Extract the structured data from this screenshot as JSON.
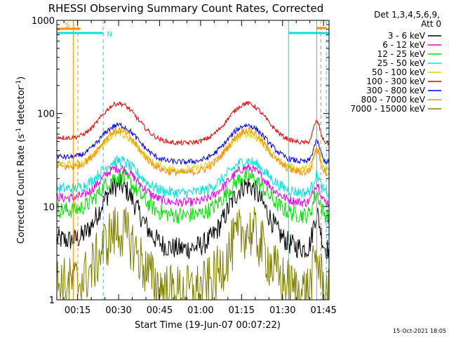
{
  "chart_data": {
    "type": "line",
    "title": "RHESSI Observing Summary Count Rates, Corrected",
    "xlabel": "Start Time (19-Jun-07 00:07:22)",
    "ylabel_main": "Corrected Count Rate (s",
    "ylabel_sup1": "-1",
    "ylabel_mid": " detector",
    "ylabel_sup2": "-1",
    "ylabel_end": ")",
    "yscale": "log",
    "ylim": [
      1,
      1000
    ],
    "xlim_min": [
      7.4,
      107
    ],
    "y_ticks": [
      {
        "v": 1,
        "label": "1"
      },
      {
        "v": 10,
        "label": "10"
      },
      {
        "v": 100,
        "label": "100"
      },
      {
        "v": 1000,
        "label": "1000"
      }
    ],
    "x_ticks": [
      {
        "m": 15,
        "label": "00:15"
      },
      {
        "m": 30,
        "label": "00:30"
      },
      {
        "m": 45,
        "label": "00:45"
      },
      {
        "m": 60,
        "label": "01:00"
      },
      {
        "m": 75,
        "label": "01:15"
      },
      {
        "m": 90,
        "label": "01:30"
      },
      {
        "m": 105,
        "label": "01:45"
      }
    ],
    "legend_header": [
      "Det 1,3,4,5,6,9,",
      "Att 0"
    ],
    "series": [
      {
        "name": "3 - 6 keV",
        "color": "#000000",
        "min": 3.5,
        "max": 17,
        "noise": 0.12
      },
      {
        "name": "6 - 12 keV",
        "color": "#e000e0",
        "min": 11,
        "max": 26,
        "noise": 0.05
      },
      {
        "name": "12 - 25 keV",
        "color": "#00e000",
        "min": 8,
        "max": 21,
        "noise": 0.09
      },
      {
        "name": "25 - 50 keV",
        "color": "#00e0e0",
        "min": 14,
        "max": 31,
        "noise": 0.06
      },
      {
        "name": "50 - 100 keV",
        "color": "#e0d000",
        "min": 25,
        "max": 60,
        "noise": 0.04
      },
      {
        "name": "100 - 300 keV",
        "color": "#e00000",
        "min": 48,
        "max": 128,
        "noise": 0.025
      },
      {
        "name": "300 - 800 keV",
        "color": "#0000e0",
        "min": 30,
        "max": 75,
        "noise": 0.03
      },
      {
        "name": "800 - 7000 keV",
        "color": "#ff8c00",
        "min": 23,
        "max": 66,
        "noise": 0.04
      },
      {
        "name": "7000 - 15000 keV",
        "color": "#808000",
        "min": 1.2,
        "max": 5.5,
        "noise": 0.3
      }
    ],
    "markers": [
      {
        "label": "S",
        "color": "#ff8c00",
        "solid_m": 13.4,
        "dashed_m": 15.1,
        "bar": [
          7.4,
          16
        ]
      },
      {
        "label": "N",
        "color": "#00e0e0",
        "dashed_m": 24.4,
        "bar": [
          7.4,
          24.4
        ]
      }
    ],
    "right_bars": [
      {
        "color": "#00e0e0",
        "start": 92.2,
        "end": 107,
        "solid_m": 92.2,
        "dashed_m": 106
      },
      {
        "color": "#ff8c00",
        "start": 102.5,
        "end": 106,
        "solid_m": 102.5,
        "dashed_m": 104
      }
    ]
  },
  "footer": {
    "timestamp": "15-Oct-2021 18:05"
  }
}
